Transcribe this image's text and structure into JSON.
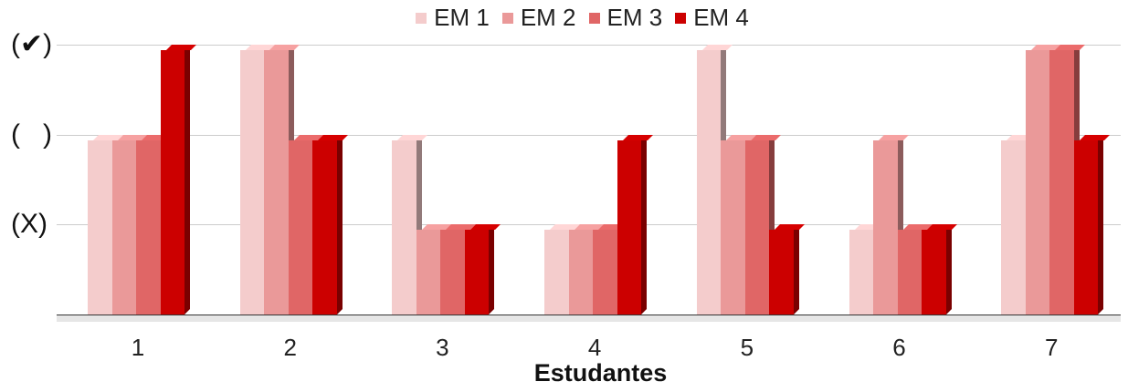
{
  "chart_data": {
    "type": "bar",
    "title": "",
    "xlabel": "Estudantes",
    "ylabel": "",
    "categories": [
      "1",
      "2",
      "3",
      "4",
      "5",
      "6",
      "7"
    ],
    "y_tick_labels": [
      "(X)",
      "(   )",
      "(✔)"
    ],
    "y_tick_values": [
      1,
      2,
      3
    ],
    "ylim": [
      0,
      3
    ],
    "grid": true,
    "legend_position": "top",
    "series": [
      {
        "name": "EM 1",
        "color": "#f4cccc",
        "values": [
          2,
          3,
          2,
          1,
          3,
          1,
          2
        ]
      },
      {
        "name": "EM 2",
        "color": "#ea9999",
        "values": [
          2,
          3,
          1,
          1,
          2,
          2,
          3
        ]
      },
      {
        "name": "EM 3",
        "color": "#e06666",
        "values": [
          2,
          2,
          1,
          1,
          2,
          1,
          3
        ]
      },
      {
        "name": "EM 4",
        "color": "#cc0000",
        "values": [
          3,
          2,
          1,
          2,
          1,
          1,
          2
        ]
      }
    ]
  }
}
